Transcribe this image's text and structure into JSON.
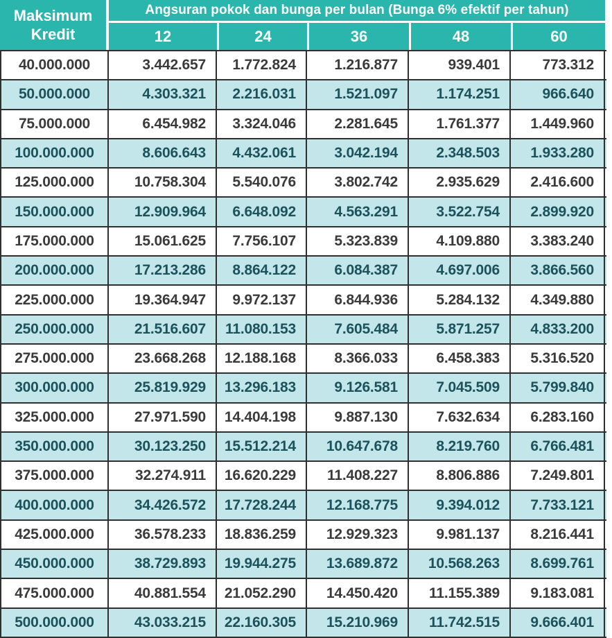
{
  "colors": {
    "header_teal": "#2ab6ac",
    "row_alt": "#c2e6ea",
    "row_white": "#ffffff",
    "text_dark": "#3a3a3a",
    "text_teal": "#1c525c",
    "border_dark": "#2f2f2f"
  },
  "table": {
    "corner_header": "Maksimum\nKredit",
    "main_header": "Angsuran pokok dan bunga per bulan (Bunga 6% efektif per tahun)",
    "tenor_headers": [
      "12",
      "24",
      "36",
      "48",
      "60"
    ],
    "rows": [
      {
        "kredit": "40.000.000",
        "values": [
          "3.442.657",
          "1.772.824",
          "1.216.877",
          "939.401",
          "773.312"
        ]
      },
      {
        "kredit": "50.000.000",
        "values": [
          "4.303.321",
          "2.216.031",
          "1.521.097",
          "1.174.251",
          "966.640"
        ]
      },
      {
        "kredit": "75.000.000",
        "values": [
          "6.454.982",
          "3.324.046",
          "2.281.645",
          "1.761.377",
          "1.449.960"
        ]
      },
      {
        "kredit": "100.000.000",
        "values": [
          "8.606.643",
          "4.432.061",
          "3.042.194",
          "2.348.503",
          "1.933.280"
        ]
      },
      {
        "kredit": "125.000.000",
        "values": [
          "10.758.304",
          "5.540.076",
          "3.802.742",
          "2.935.629",
          "2.416.600"
        ]
      },
      {
        "kredit": "150.000.000",
        "values": [
          "12.909.964",
          "6.648.092",
          "4.563.291",
          "3.522.754",
          "2.899.920"
        ]
      },
      {
        "kredit": "175.000.000",
        "values": [
          "15.061.625",
          "7.756.107",
          "5.323.839",
          "4.109.880",
          "3.383.240"
        ]
      },
      {
        "kredit": "200.000.000",
        "values": [
          "17.213.286",
          "8.864.122",
          "6.084.387",
          "4.697.006",
          "3.866.560"
        ]
      },
      {
        "kredit": "225.000.000",
        "values": [
          "19.364.947",
          "9.972.137",
          "6.844.936",
          "5.284.132",
          "4.349.880"
        ]
      },
      {
        "kredit": "250.000.000",
        "values": [
          "21.516.607",
          "11.080.153",
          "7.605.484",
          "5.871.257",
          "4.833.200"
        ]
      },
      {
        "kredit": "275.000.000",
        "values": [
          "23.668.268",
          "12.188.168",
          "8.366.033",
          "6.458.383",
          "5.316.520"
        ]
      },
      {
        "kredit": "300.000.000",
        "values": [
          "25.819.929",
          "13.296.183",
          "9.126.581",
          "7.045.509",
          "5.799.840"
        ]
      },
      {
        "kredit": "325.000.000",
        "values": [
          "27.971.590",
          "14.404.198",
          "9.887.130",
          "7.632.634",
          "6.283.160"
        ]
      },
      {
        "kredit": "350.000.000",
        "values": [
          "30.123.250",
          "15.512.214",
          "10.647.678",
          "8.219.760",
          "6.766.481"
        ]
      },
      {
        "kredit": "375.000.000",
        "values": [
          "32.274.911",
          "16.620.229",
          "11.408.227",
          "8.806.886",
          "7.249.801"
        ]
      },
      {
        "kredit": "400.000.000",
        "values": [
          "34.426.572",
          "17.728.244",
          "12.168.775",
          "9.394.012",
          "7.733.121"
        ]
      },
      {
        "kredit": "425.000.000",
        "values": [
          "36.578.233",
          "18.836.259",
          "12.929.323",
          "9.981.137",
          "8.216.441"
        ]
      },
      {
        "kredit": "450.000.000",
        "values": [
          "38.729.893",
          "19.944.275",
          "13.689.872",
          "10.568.263",
          "8.699.761"
        ]
      },
      {
        "kredit": "475.000.000",
        "values": [
          "40.881.554",
          "21.052.290",
          "14.450.420",
          "11.155.389",
          "9.183.081"
        ]
      },
      {
        "kredit": "500.000.000",
        "values": [
          "43.033.215",
          "22.160.305",
          "15.210.969",
          "11.742.515",
          "9.666.401"
        ]
      }
    ]
  }
}
